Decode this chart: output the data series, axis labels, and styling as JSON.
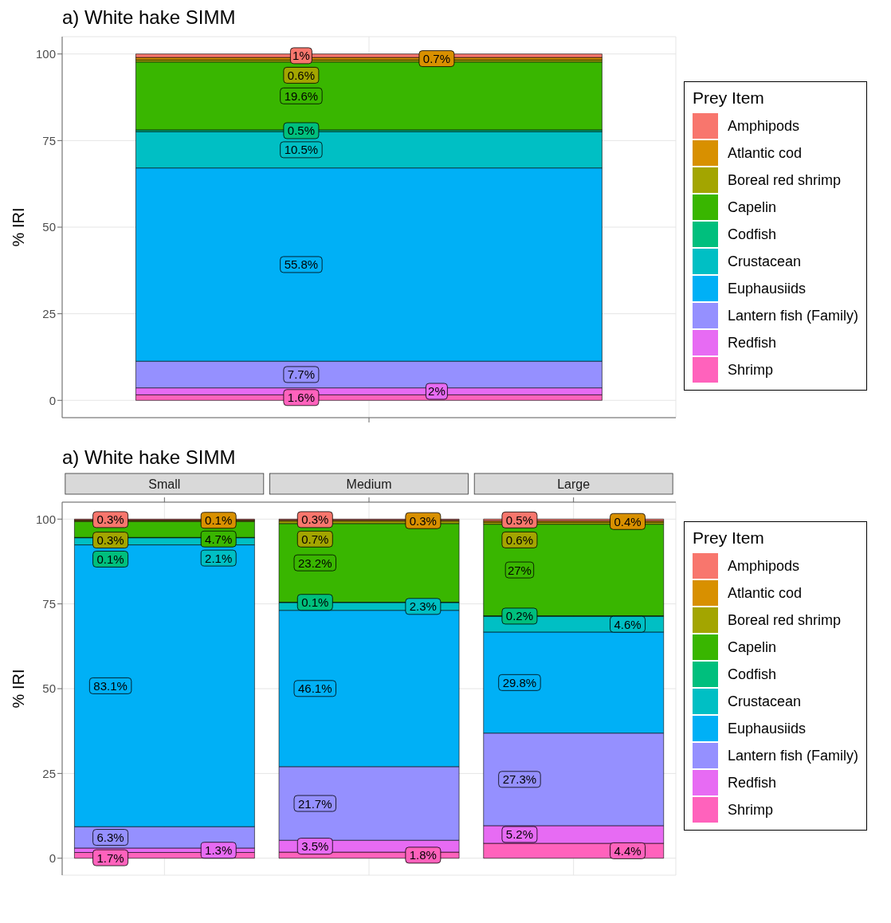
{
  "chart_data": [
    {
      "type": "bar",
      "title": "a) White hake SIMM",
      "ylabel": "% IRI",
      "legend_title": "Prey Item",
      "categories": [
        null
      ],
      "stacked": true,
      "ylim": [
        -5,
        105
      ],
      "yticks": [
        0,
        25,
        50,
        75,
        100
      ],
      "grid": true,
      "legend": "right",
      "series": [
        {
          "name": "Shrimp",
          "color": "#ff62bc",
          "values": [
            1.6
          ],
          "value_labels": [
            "1.6%"
          ]
        },
        {
          "name": "Redfish",
          "color": "#e76bf3",
          "values": [
            2
          ],
          "value_labels": [
            "2%"
          ]
        },
        {
          "name": "Lantern fish (Family)",
          "color": "#9590ff",
          "values": [
            7.7
          ],
          "value_labels": [
            "7.7%"
          ]
        },
        {
          "name": "Euphausiids",
          "color": "#00b0f6",
          "values": [
            55.8
          ],
          "value_labels": [
            "55.8%"
          ]
        },
        {
          "name": "Crustacean",
          "color": "#00bfc4",
          "values": [
            10.5
          ],
          "value_labels": [
            "10.5%"
          ]
        },
        {
          "name": "Codfish",
          "color": "#00bf7d",
          "values": [
            0.5
          ],
          "value_labels": [
            "0.5%"
          ]
        },
        {
          "name": "Capelin",
          "color": "#39b600",
          "values": [
            19.6
          ],
          "value_labels": [
            "19.6%"
          ]
        },
        {
          "name": "Boreal red shrimp",
          "color": "#a3a500",
          "values": [
            0.6
          ],
          "value_labels": [
            "0.6%"
          ]
        },
        {
          "name": "Atlantic cod",
          "color": "#d89000",
          "values": [
            0.7
          ],
          "value_labels": [
            "0.7%"
          ]
        },
        {
          "name": "Amphipods",
          "color": "#f8766d",
          "values": [
            1
          ],
          "value_labels": [
            "1%"
          ]
        }
      ]
    },
    {
      "type": "bar",
      "title": "a) White hake SIMM",
      "ylabel": "% IRI",
      "legend_title": "Prey Item",
      "categories": [
        "Small",
        "Medium",
        "Large"
      ],
      "stacked": true,
      "ylim": [
        -5,
        105
      ],
      "yticks": [
        0,
        25,
        50,
        75,
        100
      ],
      "grid": true,
      "legend": "right",
      "series": [
        {
          "name": "Shrimp",
          "color": "#ff62bc",
          "values": [
            1.7,
            1.8,
            4.4
          ],
          "value_labels": [
            "1.7%",
            "1.8%",
            "4.4%"
          ]
        },
        {
          "name": "Redfish",
          "color": "#e76bf3",
          "values": [
            1.3,
            3.5,
            5.2
          ],
          "value_labels": [
            "1.3%",
            "3.5%",
            "5.2%"
          ]
        },
        {
          "name": "Lantern fish (Family)",
          "color": "#9590ff",
          "values": [
            6.3,
            21.7,
            27.3
          ],
          "value_labels": [
            "6.3%",
            "21.7%",
            "27.3%"
          ]
        },
        {
          "name": "Euphausiids",
          "color": "#00b0f6",
          "values": [
            83.1,
            46.1,
            29.8
          ],
          "value_labels": [
            "83.1%",
            "46.1%",
            "29.8%"
          ]
        },
        {
          "name": "Crustacean",
          "color": "#00bfc4",
          "values": [
            2.1,
            2.3,
            4.6
          ],
          "value_labels": [
            "2.1%",
            "2.3%",
            "4.6%"
          ]
        },
        {
          "name": "Codfish",
          "color": "#00bf7d",
          "values": [
            0.1,
            0.1,
            0.2
          ],
          "value_labels": [
            "0.1%",
            "0.1%",
            "0.2%"
          ]
        },
        {
          "name": "Capelin",
          "color": "#39b600",
          "values": [
            4.7,
            23.2,
            27
          ],
          "value_labels": [
            "4.7%",
            "23.2%",
            "27%"
          ]
        },
        {
          "name": "Boreal red shrimp",
          "color": "#a3a500",
          "values": [
            0.3,
            0.7,
            0.6
          ],
          "value_labels": [
            "0.3%",
            "0.7%",
            "0.6%"
          ]
        },
        {
          "name": "Atlantic cod",
          "color": "#d89000",
          "values": [
            0.1,
            0.3,
            0.4
          ],
          "value_labels": [
            "0.1%",
            "0.3%",
            "0.4%"
          ]
        },
        {
          "name": "Amphipods",
          "color": "#f8766d",
          "values": [
            0.3,
            0.3,
            0.5
          ],
          "value_labels": [
            "0.3%",
            "0.3%",
            "0.5%"
          ]
        }
      ]
    }
  ]
}
